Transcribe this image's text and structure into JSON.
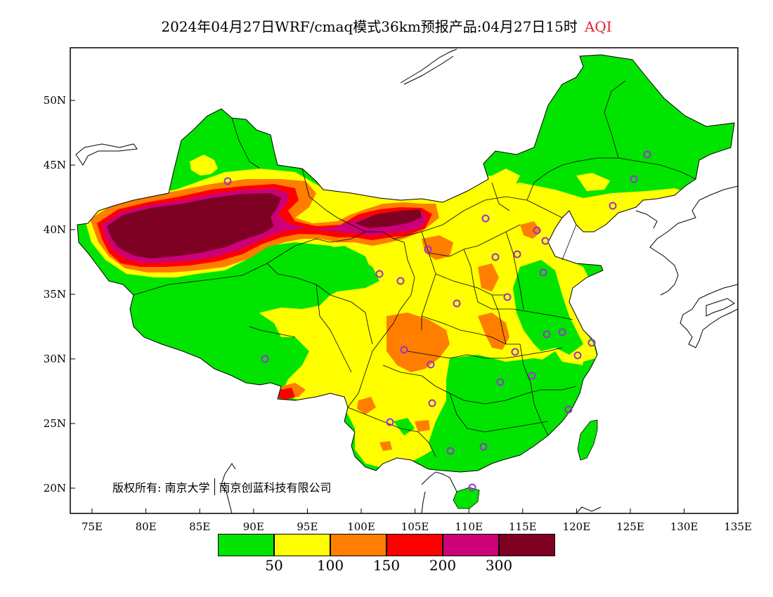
{
  "title": {
    "text": "2024年04月27日WRF/cmaq模式36km预报产品:04月27日15时",
    "variable": "AQI"
  },
  "axes": {
    "lon_labels": [
      "75E",
      "80E",
      "85E",
      "90E",
      "95E",
      "100E",
      "105E",
      "110E",
      "115E",
      "120E",
      "125E",
      "130E",
      "135E"
    ],
    "lat_labels": [
      "50N",
      "45N",
      "40N",
      "35N",
      "30N",
      "25N",
      "20N"
    ]
  },
  "copyright": {
    "prefix": "版权所有:",
    "owner1": "南京大学",
    "owner2": "南京创蓝科技有限公司"
  },
  "legend": {
    "colors": [
      "#00e400",
      "#ffff00",
      "#ff7e00",
      "#ff0000",
      "#cc0077",
      "#7e0023"
    ],
    "labels": [
      "50",
      "100",
      "150",
      "200",
      "300"
    ]
  },
  "colors": {
    "good": "#00e400",
    "moderate": "#ffff00",
    "unhealthy_sensitive": "#ff7e00",
    "unhealthy": "#ff0000",
    "very_unhealthy": "#cc0077",
    "hazardous": "#7e0023",
    "station_marker": "#9933cc"
  }
}
